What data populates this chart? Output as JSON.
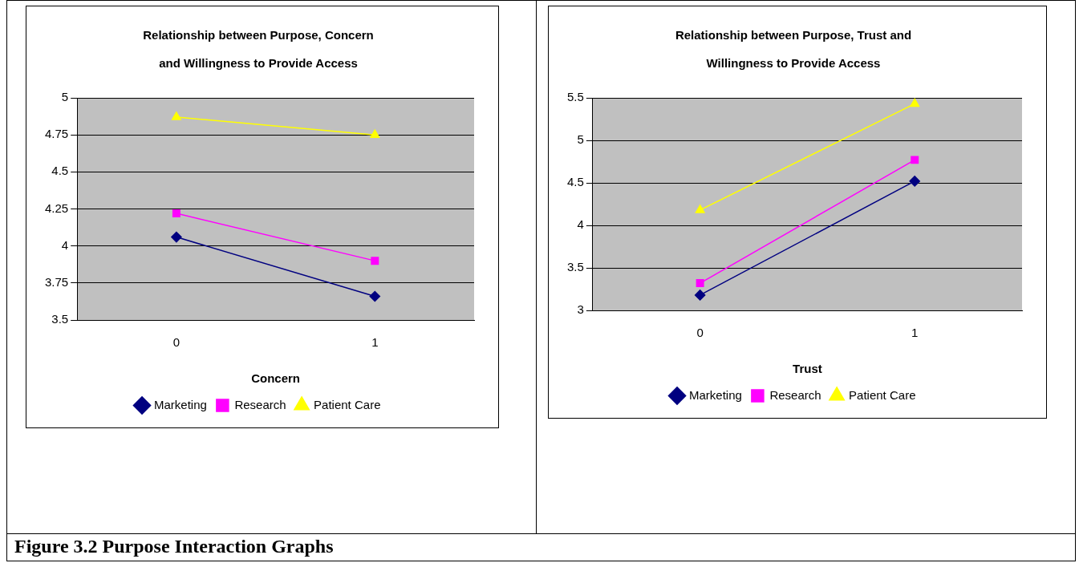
{
  "chart_data": [
    {
      "type": "line",
      "title": "Relationship between Purpose, Concern and Willingness to Provide Access",
      "xlabel": "Concern",
      "categories": [
        "0",
        "1"
      ],
      "ylim": [
        3.5,
        5
      ],
      "yticks": [
        3.5,
        3.75,
        4,
        4.25,
        4.5,
        4.75,
        5
      ],
      "grid": "y",
      "legend": "bottom",
      "line_style": "solid",
      "series": [
        {
          "name": "Marketing",
          "color": "#000080",
          "marker": "diamond",
          "values": [
            4.06,
            3.66
          ]
        },
        {
          "name": "Research",
          "color": "#ff00ff",
          "marker": "square",
          "values": [
            4.22,
            3.9
          ]
        },
        {
          "name": "Patient Care",
          "color": "#ffff00",
          "marker": "triangle",
          "values": [
            4.87,
            4.75
          ]
        }
      ],
      "annotations": [
        "Figure 3.2  Purpose Interaction Graphs"
      ]
    },
    {
      "type": "line",
      "title": "Relationship between Purpose, Trust and Willingness to Provide Access",
      "xlabel": "Trust",
      "categories": [
        "0",
        "1"
      ],
      "ylim": [
        3,
        5.5
      ],
      "yticks": [
        3,
        3.5,
        4,
        4.5,
        5,
        5.5
      ],
      "grid": "y",
      "legend": "bottom",
      "line_style": "solid",
      "series": [
        {
          "name": "Marketing",
          "color": "#000080",
          "marker": "diamond",
          "values": [
            3.18,
            4.52
          ]
        },
        {
          "name": "Research",
          "color": "#ff00ff",
          "marker": "square",
          "values": [
            3.32,
            4.77
          ]
        },
        {
          "name": "Patient Care",
          "color": "#ffff00",
          "marker": "triangle",
          "values": [
            4.18,
            5.43
          ]
        }
      ]
    }
  ]
}
